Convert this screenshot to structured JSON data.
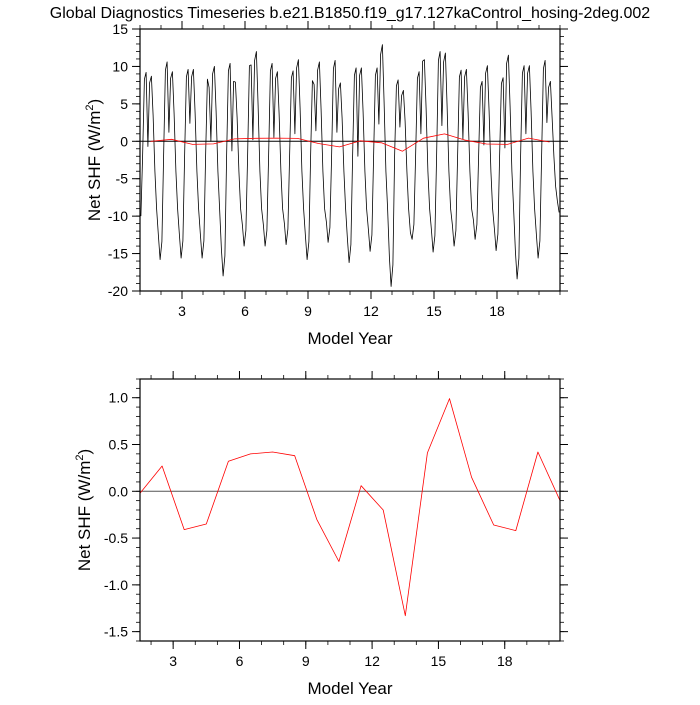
{
  "title": "Global Diagnostics Timeseries b.e21.B1850.f19_g17.127kaControl_hosing-2deg.002",
  "chart_data": [
    {
      "type": "line",
      "xlabel": "Model Year",
      "ylabel": "Net SHF (W/m",
      "ylabel_sup": "2",
      "ylabel_end": ")",
      "xlim": [
        1,
        21
      ],
      "ylim": [
        -20,
        15
      ],
      "xticks": [
        3,
        6,
        9,
        12,
        15,
        18
      ],
      "yticks": [
        -20,
        -15,
        -10,
        -5,
        0,
        5,
        10,
        15
      ],
      "grid": false,
      "reference_line": 0,
      "series": [
        {
          "name": "monthly",
          "color": "#000000",
          "start_year": 1,
          "values_by_year": [
            [
              -10,
              -2,
              8.3,
              9.2,
              -0.7,
              7.8,
              8.7,
              3.5,
              -4,
              -9,
              -12.6,
              -15.8
            ],
            [
              -13.4,
              -2,
              9.5,
              10.6,
              1.2,
              8.4,
              9.3,
              3.7,
              -4,
              -9,
              -12.5,
              -15.6
            ],
            [
              -13.3,
              -2,
              8.6,
              9.6,
              2.4,
              8.6,
              9.6,
              3.8,
              -4,
              -9,
              -12.5,
              -15.6
            ],
            [
              -13.3,
              -2,
              8.3,
              7.2,
              0.0,
              9.0,
              10.0,
              4.0,
              -4,
              -9,
              -14.4,
              -18.0
            ],
            [
              -15.3,
              -2,
              9.4,
              10.4,
              -1.3,
              8.0,
              7.9,
              3.2,
              -4,
              -9,
              -11.2,
              -14.0
            ],
            [
              -11.9,
              -2,
              10.1,
              10.2,
              0.2,
              10.8,
              12.0,
              4.8,
              -4,
              -9,
              -11.2,
              -14.0
            ],
            [
              -11.9,
              -2,
              9.4,
              10.4,
              0.5,
              8.4,
              9.3,
              3.7,
              -4,
              -9,
              -11.0,
              -13.8
            ],
            [
              -11.7,
              -2,
              8.5,
              9.4,
              1.0,
              9.8,
              10.9,
              4.4,
              -4,
              -9,
              -12.6,
              -15.8
            ],
            [
              -13.4,
              -2,
              8.1,
              7.6,
              1.4,
              9.5,
              10.6,
              4.2,
              -4,
              -9,
              -10.8,
              -13.5
            ],
            [
              -11.5,
              -2,
              9.7,
              10.8,
              1.2,
              7.0,
              7.8,
              3.1,
              -4,
              -9,
              -13.0,
              -16.2
            ],
            [
              -13.8,
              -2,
              8.8,
              9.8,
              -2.0,
              8.8,
              9.8,
              3.9,
              -4,
              -9,
              -11.8,
              -14.7
            ],
            [
              -12.5,
              -2,
              8.8,
              9.8,
              2.3,
              11.6,
              12.9,
              5.2,
              -4,
              -9,
              -15.5,
              -19.4
            ],
            [
              -16.5,
              -2,
              7.4,
              8.2,
              1.9,
              6.1,
              6.8,
              2.7,
              -4,
              -9,
              -12.2,
              -13.1
            ],
            [
              -11.1,
              -2,
              8.4,
              9.3,
              1.0,
              10.7,
              10.9,
              4.4,
              -4,
              -9,
              -11.8,
              -14.8
            ],
            [
              -12.6,
              -2,
              10.8,
              12.0,
              2.1,
              10.6,
              11.8,
              4.7,
              -4,
              -9,
              -11.2,
              -14.0
            ],
            [
              -11.9,
              -2,
              8.6,
              9.5,
              0.3,
              8.6,
              9.6,
              3.8,
              -4,
              -9,
              -10.5,
              -13.1
            ],
            [
              -11.1,
              -2,
              7.2,
              8.0,
              -0.5,
              9.1,
              10.1,
              4.0,
              -4,
              -9,
              -11.7,
              -14.6
            ],
            [
              -12.4,
              -2,
              7.7,
              8.5,
              -0.9,
              10.4,
              11.5,
              4.6,
              -4,
              -9,
              -14.7,
              -18.4
            ],
            [
              -15.6,
              -2,
              9.1,
              10.1,
              1.0,
              9.1,
              10.1,
              4.0,
              -4,
              -9,
              -12.5,
              -15.6
            ],
            [
              -13.3,
              -2,
              9.7,
              10.8,
              2.5,
              7.2,
              8.0,
              3.2,
              -2,
              -6,
              -8,
              -9.5
            ]
          ]
        },
        {
          "name": "annual mean",
          "color": "#ff0000",
          "x": [
            1.5,
            2.5,
            3.5,
            4.5,
            5.5,
            6.5,
            7.5,
            8.5,
            9.5,
            10.5,
            11.5,
            12.5,
            13.5,
            14.5,
            15.5,
            16.5,
            17.5,
            18.5,
            19.5,
            20.5
          ],
          "values": [
            -0.02,
            0.27,
            -0.41,
            -0.35,
            0.32,
            0.4,
            0.42,
            0.38,
            -0.3,
            -0.75,
            0.06,
            -0.2,
            -1.33,
            0.41,
            0.99,
            0.15,
            -0.36,
            -0.42,
            0.42,
            -0.1
          ]
        }
      ]
    },
    {
      "type": "line",
      "xlabel": "Model Year",
      "ylabel": "Net SHF (W/m",
      "ylabel_sup": "2",
      "ylabel_end": ")",
      "xlim": [
        1.5,
        20.5
      ],
      "ylim": [
        -1.6,
        1.2
      ],
      "xticks": [
        3,
        6,
        9,
        12,
        15,
        18
      ],
      "yticks": [
        -1.5,
        -1.0,
        -0.5,
        0.0,
        0.5,
        1.0
      ],
      "ytick_labels": [
        "-1.5",
        "-1.0",
        "-0.5",
        "0.0",
        "0.5",
        "1.0"
      ],
      "grid": false,
      "reference_line": 0,
      "series": [
        {
          "name": "annual mean",
          "color": "#ff0000",
          "x": [
            1.5,
            2.5,
            3.5,
            4.5,
            5.5,
            6.5,
            7.5,
            8.5,
            9.5,
            10.5,
            11.5,
            12.5,
            13.5,
            14.5,
            15.5,
            16.5,
            17.5,
            18.5,
            19.5,
            20.5
          ],
          "values": [
            -0.02,
            0.27,
            -0.41,
            -0.35,
            0.32,
            0.4,
            0.42,
            0.38,
            -0.3,
            -0.75,
            0.06,
            -0.2,
            -1.33,
            0.41,
            0.99,
            0.15,
            -0.36,
            -0.42,
            0.42,
            -0.1
          ]
        }
      ]
    }
  ]
}
